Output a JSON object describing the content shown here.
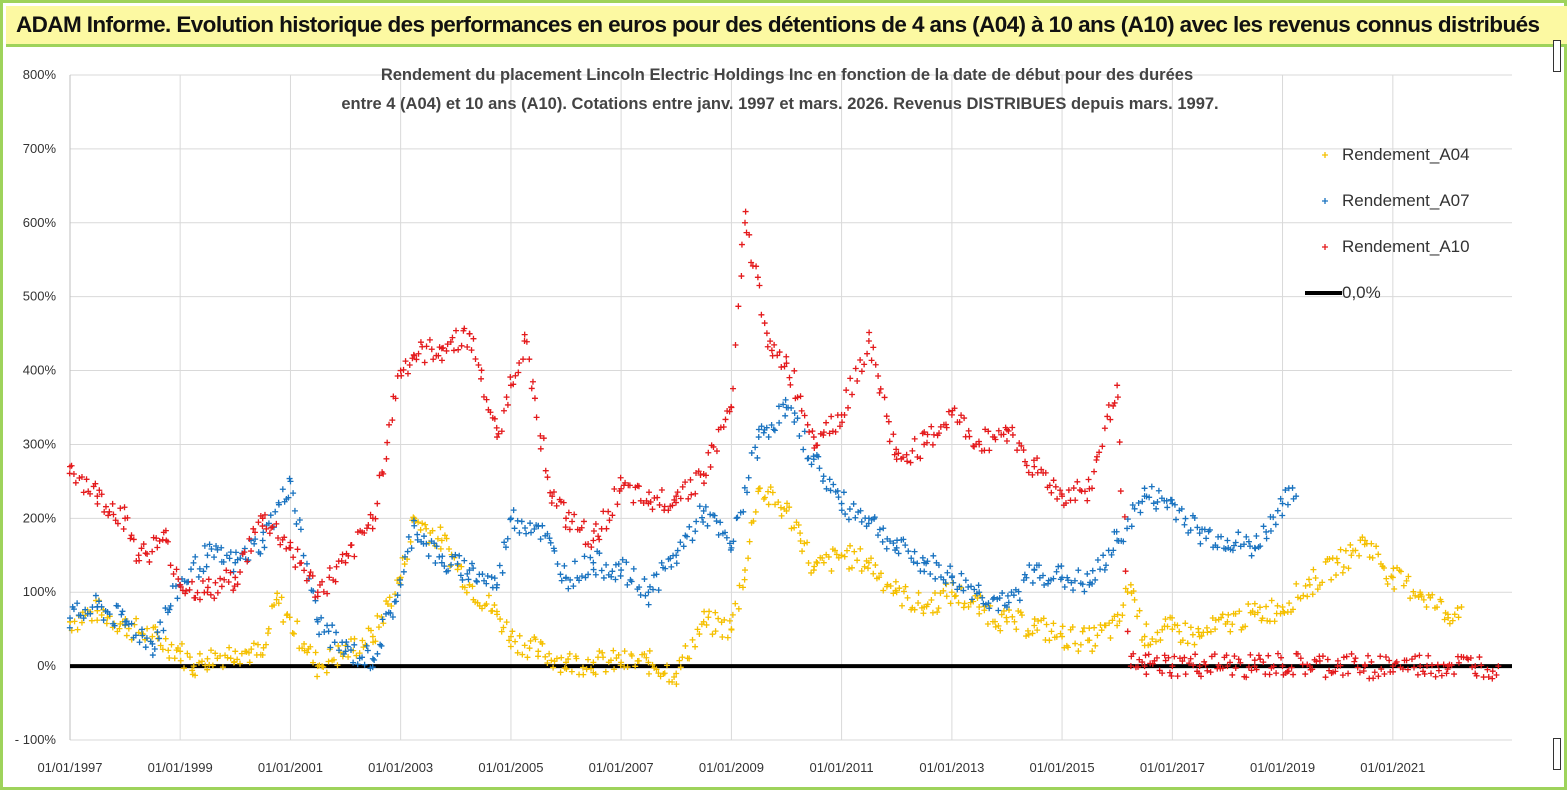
{
  "header": {
    "title": "ADAM Informe. Evolution historique des performances en euros pour des détentions de 4 ans (A04) à 10 ans (A10) avec les revenus connus distribués"
  },
  "chart_data": {
    "type": "scatter",
    "title": "Rendement du placement Lincoln Electric Holdings Inc en fonction de la date de début pour des durées",
    "subtitle": "entre 4 (A04) et 10 ans (A10). Cotations entre janv. 1997 et mars. 2026. Revenus DISTRIBUES depuis mars. 1997.",
    "xlabel": "",
    "ylabel": "",
    "x_range": [
      "1997-01-01",
      "2023-01-01"
    ],
    "ylim": [
      -100,
      800
    ],
    "y_ticks": [
      -100,
      0,
      100,
      200,
      300,
      400,
      500,
      600,
      700,
      800
    ],
    "y_tick_labels": [
      "- 100%",
      "0%",
      "100%",
      "200%",
      "300%",
      "400%",
      "500%",
      "600%",
      "700%",
      "800%"
    ],
    "x_ticks": [
      "1997-01-01",
      "1999-01-01",
      "2001-01-01",
      "2003-01-01",
      "2005-01-01",
      "2007-01-01",
      "2009-01-01",
      "2011-01-01",
      "2013-01-01",
      "2015-01-01",
      "2017-01-01",
      "2019-01-01",
      "2021-01-01"
    ],
    "x_tick_labels": [
      "01/01/1997",
      "01/01/1999",
      "01/01/2001",
      "01/01/2003",
      "01/01/2005",
      "01/01/2007",
      "01/01/2009",
      "01/01/2011",
      "01/01/2013",
      "01/01/2015",
      "01/01/2017",
      "01/01/2019",
      "01/01/2021"
    ],
    "grid": true,
    "legend_position": "top-right",
    "series": [
      {
        "name": "Rendement_A04",
        "color": "#f5c000",
        "marker": "+",
        "x": [
          "1997-01-01",
          "1997-07-01",
          "1998-01-01",
          "1998-07-01",
          "1999-01-01",
          "1999-04-01",
          "1999-07-01",
          "2000-01-01",
          "2000-04-01",
          "2000-07-01",
          "2000-10-01",
          "2001-04-01",
          "2001-07-01",
          "2002-01-01",
          "2002-07-01",
          "2003-01-01",
          "2003-04-01",
          "2003-10-01",
          "2004-04-01",
          "2004-10-01",
          "2005-01-01",
          "2005-07-01",
          "2006-01-01",
          "2006-07-01",
          "2007-01-01",
          "2007-07-01",
          "2008-01-01",
          "2008-07-01",
          "2009-01-01",
          "2009-04-01",
          "2009-07-01",
          "2010-01-01",
          "2010-04-01",
          "2010-07-01",
          "2011-01-01",
          "2011-07-01",
          "2012-01-01",
          "2012-07-01",
          "2013-01-01",
          "2013-07-01",
          "2014-01-01",
          "2014-07-01",
          "2015-01-01",
          "2015-07-01",
          "2016-01-01",
          "2016-04-01",
          "2016-07-01",
          "2017-01-01",
          "2017-07-01",
          "2018-01-01",
          "2018-07-01",
          "2019-01-01",
          "2019-07-01",
          "2020-01-01",
          "2020-04-01",
          "2020-07-01",
          "2021-01-01",
          "2021-07-01",
          "2022-01-01",
          "2022-04-01"
        ],
        "y": [
          60,
          75,
          55,
          40,
          20,
          0,
          10,
          20,
          18,
          15,
          90,
          30,
          0,
          20,
          40,
          120,
          200,
          170,
          110,
          70,
          40,
          20,
          5,
          5,
          5,
          5,
          -10,
          60,
          50,
          130,
          240,
          210,
          180,
          130,
          150,
          140,
          100,
          80,
          100,
          80,
          60,
          55,
          40,
          35,
          55,
          110,
          40,
          50,
          40,
          60,
          70,
          80,
          110,
          140,
          150,
          170,
          120,
          100,
          70,
          80
        ]
      },
      {
        "name": "Rendement_A07",
        "color": "#1a73c0",
        "marker": "+",
        "x": [
          "1997-01-01",
          "1997-07-01",
          "1998-01-01",
          "1998-07-01",
          "1999-01-01",
          "1999-07-01",
          "2000-01-01",
          "2000-07-01",
          "2001-01-01",
          "2001-07-01",
          "2002-01-01",
          "2002-07-01",
          "2003-01-01",
          "2003-04-01",
          "2003-10-01",
          "2004-04-01",
          "2004-10-01",
          "2005-01-01",
          "2005-07-01",
          "2006-01-01",
          "2006-07-01",
          "2007-01-01",
          "2007-07-01",
          "2008-01-01",
          "2008-07-01",
          "2009-01-01",
          "2009-07-01",
          "2010-01-01",
          "2010-07-01",
          "2011-01-01",
          "2011-07-01",
          "2012-01-01",
          "2012-07-01",
          "2013-01-01",
          "2013-07-01",
          "2014-01-01",
          "2014-07-01",
          "2015-01-01",
          "2015-07-01",
          "2016-01-01",
          "2016-07-01",
          "2017-01-01",
          "2017-07-01",
          "2018-01-01",
          "2018-07-01",
          "2019-01-01",
          "2019-04-01"
        ],
        "y": [
          65,
          80,
          60,
          30,
          110,
          150,
          140,
          170,
          250,
          60,
          20,
          10,
          110,
          190,
          140,
          130,
          110,
          200,
          190,
          120,
          140,
          130,
          100,
          150,
          210,
          160,
          310,
          350,
          280,
          220,
          200,
          160,
          140,
          120,
          100,
          80,
          130,
          120,
          110,
          170,
          230,
          220,
          180,
          170,
          160,
          220,
          230
        ]
      },
      {
        "name": "Rendement_A10",
        "color": "#e41a1c",
        "marker": "+",
        "x": [
          "1997-01-01",
          "1997-07-01",
          "1998-01-01",
          "1998-04-01",
          "1998-10-01",
          "1999-01-01",
          "1999-07-01",
          "2000-01-01",
          "2000-07-01",
          "2001-01-01",
          "2001-07-01",
          "2002-01-01",
          "2002-07-01",
          "2003-01-01",
          "2003-04-01",
          "2003-10-01",
          "2004-04-01",
          "2004-10-01",
          "2005-01-01",
          "2005-04-01",
          "2005-10-01",
          "2006-01-01",
          "2006-07-01",
          "2007-01-01",
          "2007-07-01",
          "2008-01-01",
          "2008-07-01",
          "2009-01-01",
          "2009-04-01",
          "2009-10-01",
          "2010-01-01",
          "2010-07-01",
          "2011-01-01",
          "2011-07-01",
          "2012-01-01",
          "2012-07-01",
          "2013-01-01",
          "2013-07-01",
          "2014-01-01",
          "2014-07-01",
          "2015-01-01",
          "2015-07-01",
          "2016-01-01",
          "2016-04-01",
          "2016-07-01",
          "2017-01-01",
          "2017-07-01",
          "2018-01-01",
          "2018-07-01",
          "2019-01-01",
          "2019-07-01",
          "2020-01-01",
          "2020-07-01",
          "2021-01-01",
          "2021-07-01",
          "2022-01-01",
          "2022-07-01",
          "2022-12-01"
        ],
        "y": [
          270,
          230,
          200,
          150,
          170,
          110,
          100,
          120,
          200,
          160,
          100,
          140,
          200,
          400,
          420,
          430,
          450,
          310,
          380,
          440,
          230,
          200,
          170,
          240,
          220,
          230,
          260,
          350,
          600,
          420,
          410,
          310,
          340,
          440,
          280,
          300,
          340,
          300,
          320,
          270,
          230,
          240,
          380,
          0,
          0,
          0,
          0,
          0,
          0,
          0,
          0,
          0,
          0,
          0,
          0,
          0,
          0,
          0
        ]
      }
    ],
    "reference_line": {
      "name": "0,0%",
      "color": "#000000",
      "value": 0
    }
  }
}
